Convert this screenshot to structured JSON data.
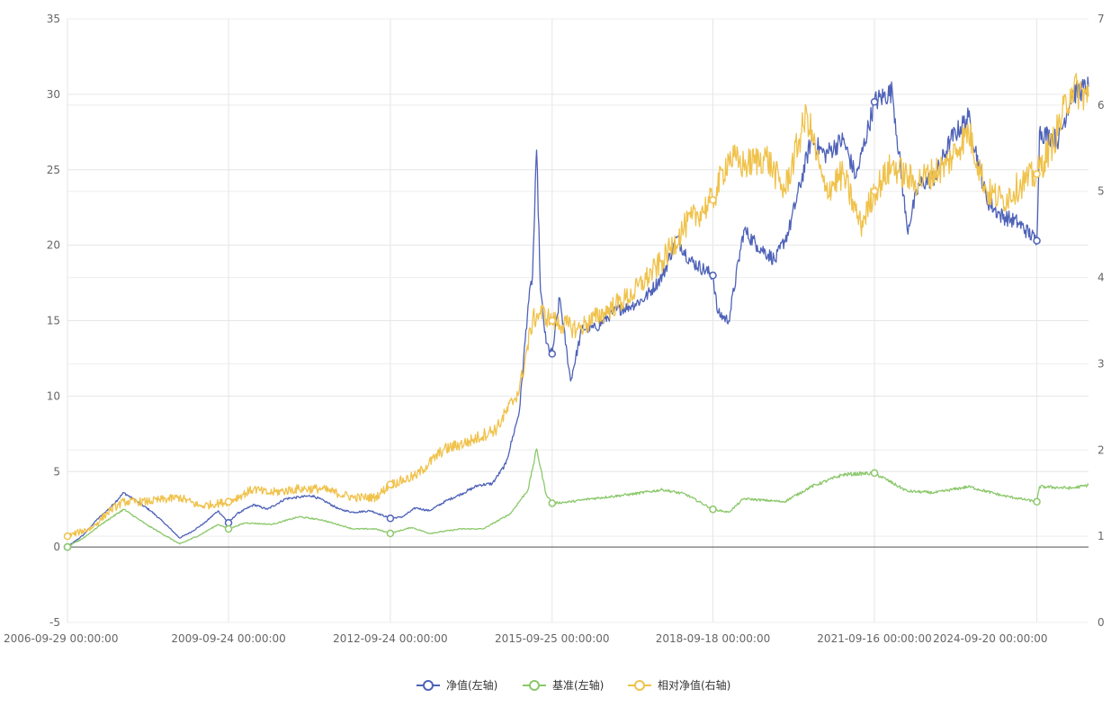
{
  "chart_data": {
    "type": "line",
    "x_tick_labels": [
      "2006-09-29 00:00:00",
      "2009-09-24 00:00:00",
      "2012-09-24 00:00:00",
      "2015-09-25 00:00:00",
      "2018-09-18 00:00:00",
      "2021-09-16 00:00:00",
      "2024-09-20 00:00:00"
    ],
    "x_range": [
      "2006-09-29",
      "2025-09-05"
    ],
    "y_left": {
      "range": [
        -5,
        35
      ],
      "ticks": [
        "-5",
        "0",
        "5",
        "10",
        "15",
        "20",
        "25",
        "30",
        "35"
      ]
    },
    "y_right": {
      "range": [
        0,
        7
      ],
      "ticks": [
        "0",
        "1",
        "2",
        "3",
        "4",
        "5",
        "6",
        "7"
      ]
    },
    "grid": true,
    "legend_position": "bottom-center",
    "series": [
      {
        "name": "净值(左轴)",
        "axis": "left",
        "color": "#4e62b8",
        "points": [
          [
            "2006-09-29",
            0.0
          ],
          [
            "2007-01-15",
            0.8
          ],
          [
            "2007-04-15",
            1.8
          ],
          [
            "2007-07-15",
            2.6
          ],
          [
            "2007-10-15",
            3.6
          ],
          [
            "2008-01-15",
            3.0
          ],
          [
            "2008-04-15",
            2.4
          ],
          [
            "2008-07-15",
            1.6
          ],
          [
            "2008-10-28",
            0.6
          ],
          [
            "2009-01-15",
            1.0
          ],
          [
            "2009-04-15",
            1.6
          ],
          [
            "2009-07-15",
            2.4
          ],
          [
            "2009-09-24",
            1.6
          ],
          [
            "2009-11-20",
            2.2
          ],
          [
            "2010-03-15",
            2.8
          ],
          [
            "2010-06-15",
            2.5
          ],
          [
            "2010-10-15",
            3.2
          ],
          [
            "2011-01-15",
            3.3
          ],
          [
            "2011-04-15",
            3.4
          ],
          [
            "2011-07-15",
            3.0
          ],
          [
            "2011-10-15",
            2.5
          ],
          [
            "2012-01-15",
            2.3
          ],
          [
            "2012-05-15",
            2.4
          ],
          [
            "2012-09-24",
            1.9
          ],
          [
            "2012-12-15",
            2.0
          ],
          [
            "2013-03-15",
            2.6
          ],
          [
            "2013-06-15",
            2.4
          ],
          [
            "2013-10-15",
            3.1
          ],
          [
            "2014-01-15",
            3.5
          ],
          [
            "2014-05-15",
            4.1
          ],
          [
            "2014-08-15",
            4.2
          ],
          [
            "2014-11-15",
            5.5
          ],
          [
            "2015-02-15",
            9.0
          ],
          [
            "2015-04-15",
            16.0
          ],
          [
            "2015-05-15",
            18.0
          ],
          [
            "2015-06-12",
            26.3
          ],
          [
            "2015-07-08",
            17.0
          ],
          [
            "2015-08-15",
            13.5
          ],
          [
            "2015-09-25",
            12.8
          ],
          [
            "2015-11-15",
            16.5
          ],
          [
            "2016-01-28",
            11.0
          ],
          [
            "2016-04-15",
            14.5
          ],
          [
            "2016-07-15",
            14.5
          ],
          [
            "2016-11-15",
            15.6
          ],
          [
            "2017-03-15",
            16.0
          ],
          [
            "2017-06-15",
            16.5
          ],
          [
            "2017-10-15",
            18.0
          ],
          [
            "2018-01-15",
            20.5
          ],
          [
            "2018-04-15",
            19.0
          ],
          [
            "2018-09-18",
            18.0
          ],
          [
            "2018-10-20",
            15.5
          ],
          [
            "2019-01-03",
            15.0
          ],
          [
            "2019-04-15",
            21.0
          ],
          [
            "2019-07-15",
            20.0
          ],
          [
            "2019-11-15",
            19.0
          ],
          [
            "2020-02-15",
            21.0
          ],
          [
            "2020-07-15",
            27.0
          ],
          [
            "2020-10-15",
            26.0
          ],
          [
            "2021-02-15",
            27.0
          ],
          [
            "2021-05-15",
            24.5
          ],
          [
            "2021-09-16",
            29.5
          ],
          [
            "2022-01-15",
            30.2
          ],
          [
            "2022-04-26",
            21.0
          ],
          [
            "2022-07-15",
            24.0
          ],
          [
            "2022-10-30",
            24.5
          ],
          [
            "2023-02-15",
            27.0
          ],
          [
            "2023-06-15",
            28.5
          ],
          [
            "2023-10-15",
            23.0
          ],
          [
            "2024-01-15",
            22.0
          ],
          [
            "2024-05-15",
            21.5
          ],
          [
            "2024-09-20",
            20.3
          ],
          [
            "2024-10-08",
            27.5
          ],
          [
            "2025-02-15",
            27.0
          ],
          [
            "2025-05-15",
            30.0
          ],
          [
            "2025-09-05",
            30.5
          ]
        ]
      },
      {
        "name": "基准(左轴)",
        "axis": "left",
        "color": "#8bc86b",
        "points": [
          [
            "2006-09-29",
            0.0
          ],
          [
            "2007-01-15",
            0.6
          ],
          [
            "2007-05-15",
            1.5
          ],
          [
            "2007-10-15",
            2.5
          ],
          [
            "2008-03-15",
            1.5
          ],
          [
            "2008-10-28",
            0.2
          ],
          [
            "2009-03-15",
            0.8
          ],
          [
            "2009-07-15",
            1.5
          ],
          [
            "2009-09-24",
            1.2
          ],
          [
            "2010-01-15",
            1.6
          ],
          [
            "2010-07-15",
            1.5
          ],
          [
            "2011-01-15",
            2.0
          ],
          [
            "2011-06-15",
            1.8
          ],
          [
            "2012-01-15",
            1.2
          ],
          [
            "2012-06-15",
            1.2
          ],
          [
            "2012-09-24",
            0.9
          ],
          [
            "2013-02-15",
            1.3
          ],
          [
            "2013-06-15",
            0.9
          ],
          [
            "2014-01-15",
            1.2
          ],
          [
            "2014-06-15",
            1.2
          ],
          [
            "2014-12-15",
            2.2
          ],
          [
            "2015-04-15",
            3.8
          ],
          [
            "2015-06-12",
            6.5
          ],
          [
            "2015-08-15",
            3.5
          ],
          [
            "2015-09-25",
            2.9
          ],
          [
            "2016-01-28",
            3.0
          ],
          [
            "2016-06-15",
            3.2
          ],
          [
            "2017-03-15",
            3.5
          ],
          [
            "2017-10-15",
            3.8
          ],
          [
            "2018-03-15",
            3.5
          ],
          [
            "2018-09-18",
            2.5
          ],
          [
            "2019-01-03",
            2.3
          ],
          [
            "2019-04-15",
            3.2
          ],
          [
            "2020-01-15",
            3.0
          ],
          [
            "2020-07-15",
            4.0
          ],
          [
            "2021-02-15",
            4.8
          ],
          [
            "2021-09-16",
            4.9
          ],
          [
            "2022-04-26",
            3.7
          ],
          [
            "2022-10-30",
            3.6
          ],
          [
            "2023-06-15",
            4.0
          ],
          [
            "2024-02-05",
            3.4
          ],
          [
            "2024-09-20",
            3.0
          ],
          [
            "2024-10-08",
            4.0
          ],
          [
            "2025-05-15",
            3.9
          ],
          [
            "2025-09-05",
            4.1
          ]
        ]
      },
      {
        "name": "相对净值(右轴)",
        "axis": "right",
        "color": "#f0c24b",
        "points": [
          [
            "2006-09-29",
            1.0
          ],
          [
            "2007-03-15",
            1.1
          ],
          [
            "2007-07-15",
            1.3
          ],
          [
            "2007-10-15",
            1.4
          ],
          [
            "2008-03-15",
            1.4
          ],
          [
            "2008-10-28",
            1.45
          ],
          [
            "2009-03-15",
            1.35
          ],
          [
            "2009-09-24",
            1.4
          ],
          [
            "2010-03-15",
            1.55
          ],
          [
            "2010-06-15",
            1.5
          ],
          [
            "2011-01-15",
            1.55
          ],
          [
            "2011-06-15",
            1.55
          ],
          [
            "2012-01-15",
            1.45
          ],
          [
            "2012-06-15",
            1.45
          ],
          [
            "2012-09-24",
            1.6
          ],
          [
            "2013-03-15",
            1.7
          ],
          [
            "2013-09-15",
            2.0
          ],
          [
            "2014-03-15",
            2.1
          ],
          [
            "2014-09-15",
            2.25
          ],
          [
            "2015-02-15",
            2.7
          ],
          [
            "2015-05-15",
            3.5
          ],
          [
            "2015-07-08",
            3.6
          ],
          [
            "2015-09-25",
            3.5
          ],
          [
            "2016-03-15",
            3.4
          ],
          [
            "2016-09-15",
            3.6
          ],
          [
            "2017-03-15",
            3.8
          ],
          [
            "2017-10-15",
            4.2
          ],
          [
            "2018-03-15",
            4.6
          ],
          [
            "2018-09-18",
            4.9
          ],
          [
            "2019-01-03",
            5.4
          ],
          [
            "2019-04-15",
            5.3
          ],
          [
            "2019-09-15",
            5.4
          ],
          [
            "2020-01-15",
            5.0
          ],
          [
            "2020-06-15",
            5.9
          ],
          [
            "2020-10-15",
            5.0
          ],
          [
            "2021-02-15",
            5.2
          ],
          [
            "2021-06-15",
            4.6
          ],
          [
            "2021-09-16",
            5.0
          ],
          [
            "2022-01-15",
            5.3
          ],
          [
            "2022-06-15",
            5.1
          ],
          [
            "2023-01-15",
            5.3
          ],
          [
            "2023-06-15",
            5.7
          ],
          [
            "2023-10-15",
            5.0
          ],
          [
            "2024-02-05",
            4.9
          ],
          [
            "2024-06-15",
            5.1
          ],
          [
            "2024-09-20",
            5.2
          ],
          [
            "2025-01-15",
            5.6
          ],
          [
            "2025-05-15",
            6.2
          ],
          [
            "2025-09-05",
            6.1
          ]
        ]
      }
    ]
  }
}
